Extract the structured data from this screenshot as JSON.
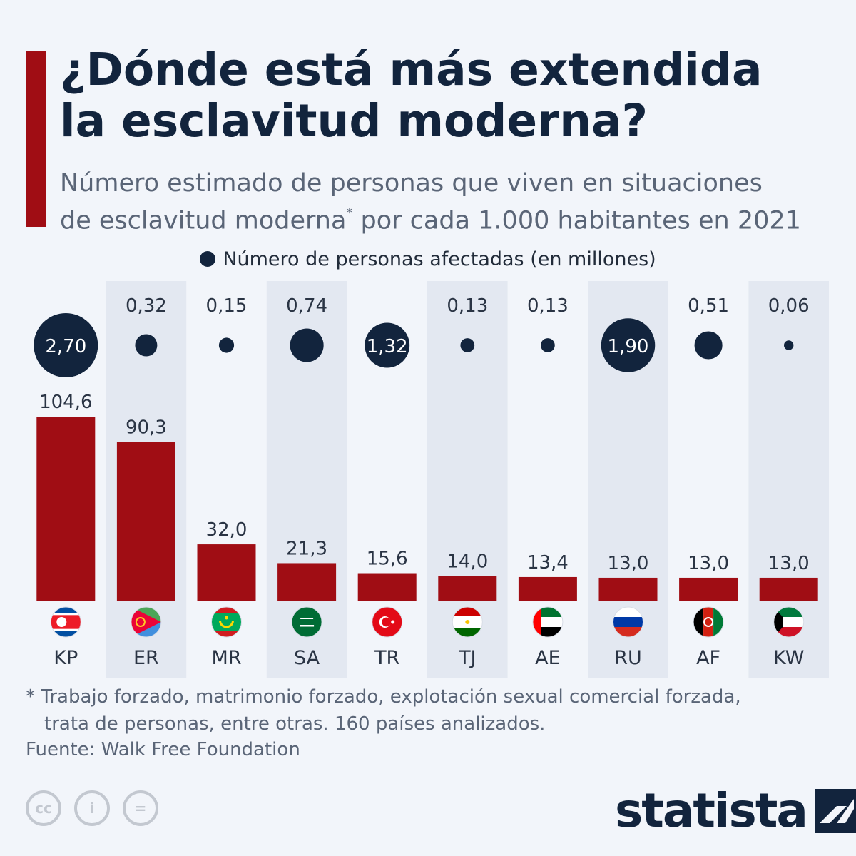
{
  "header": {
    "title_line1": "¿Dónde está más extendida",
    "title_line2": "la esclavitud moderna?",
    "subtitle_line1": "Número estimado de personas que viven en situaciones",
    "subtitle_line2a": "de esclavitud moderna",
    "subtitle_mark": "*",
    "subtitle_line2b": " por cada 1.000 habitantes en 2021"
  },
  "legend": {
    "label": "Número de personas afectadas (en millones)"
  },
  "colors": {
    "bar": "#a00d14",
    "bubble": "#12243d",
    "band": "#e3e8f1",
    "background": "#f2f5fa"
  },
  "chart_data": {
    "type": "bar",
    "categories": [
      "KP",
      "ER",
      "MR",
      "SA",
      "TR",
      "TJ",
      "AE",
      "RU",
      "AF",
      "KW"
    ],
    "values": [
      104.6,
      90.3,
      32.0,
      21.3,
      15.6,
      14.0,
      13.4,
      13.0,
      13.0,
      13.0
    ],
    "value_labels": [
      "104,6",
      "90,3",
      "32,0",
      "21,3",
      "15,6",
      "14,0",
      "13,4",
      "13,0",
      "13,0",
      "13,0"
    ],
    "bubble_values": [
      2.7,
      0.32,
      0.15,
      0.74,
      1.32,
      0.13,
      0.13,
      1.9,
      0.51,
      0.06
    ],
    "bubble_labels": [
      "2,70",
      "0,32",
      "0,15",
      "0,74",
      "1,32",
      "0,13",
      "0,13",
      "1,90",
      "0,51",
      "0,06"
    ],
    "flags": [
      "north-korea-flag-icon",
      "eritrea-flag-icon",
      "mauritania-flag-icon",
      "saudi-arabia-flag-icon",
      "turkey-flag-icon",
      "tajikistan-flag-icon",
      "uae-flag-icon",
      "russia-flag-icon",
      "afghanistan-flag-icon",
      "kuwait-flag-icon"
    ],
    "ylim": [
      0,
      104.6
    ],
    "grid": false
  },
  "footnote": {
    "line1": "* Trabajo forzado, matrimonio forzado, explotación sexual comercial forzada,",
    "line2": "trata de personas, entre otras. 160 países analizados."
  },
  "source": "Fuente: Walk Free Foundation",
  "logo": {
    "text": "statista"
  },
  "license_icons": [
    "cc-icon",
    "attribution-icon",
    "no-derivatives-icon"
  ],
  "license_glyphs": [
    "cc",
    "i",
    "="
  ]
}
